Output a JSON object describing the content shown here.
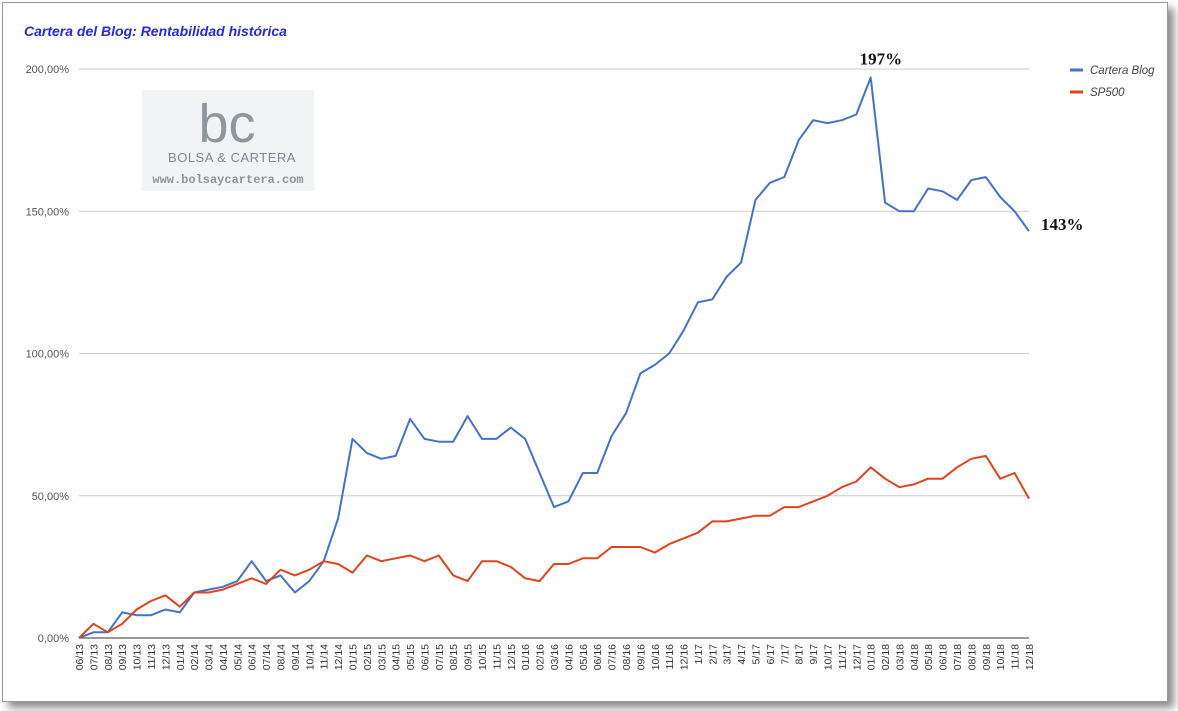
{
  "colors": {
    "title": "#2929d6",
    "blog": "#4472c4",
    "sp500": "#e0431e",
    "grid": "#cccccc",
    "axis": "#333333"
  },
  "watermark": {
    "logo": "bc",
    "name": "BOLSA & CARTERA",
    "url": "www.bolsaycartera.com"
  },
  "annotations": [
    {
      "text": "197%",
      "series": 0,
      "index": 55
    },
    {
      "text": "143%",
      "series": 0,
      "index": 66
    }
  ],
  "chart_data": {
    "type": "line",
    "title": "Cartera del Blog: Rentabilidad histórica",
    "xlabel": "",
    "ylabel": "",
    "ylim": [
      0,
      200
    ],
    "yticks": [
      "0,00%",
      "50,00%",
      "100,00%",
      "150,00%",
      "200,00%"
    ],
    "grid": true,
    "legend_position": "top-right",
    "x": [
      "06/13",
      "07/13",
      "08/13",
      "09/13",
      "10/13",
      "11/13",
      "12/13",
      "01/14",
      "02/14",
      "03/14",
      "04/14",
      "05/14",
      "06/14",
      "07/14",
      "08/14",
      "09/14",
      "10/14",
      "11/14",
      "12/14",
      "01/15",
      "02/15",
      "03/15",
      "04/15",
      "05/15",
      "06/15",
      "07/15",
      "08/15",
      "09/15",
      "10/15",
      "11/15",
      "12/15",
      "01/16",
      "02/16",
      "03/16",
      "04/16",
      "05/16",
      "06/16",
      "07/16",
      "08/16",
      "09/16",
      "10/16",
      "11/16",
      "12/16",
      "1/17",
      "2/17",
      "3/17",
      "4/17",
      "5/17",
      "6/17",
      "7/17",
      "8/17",
      "9/17",
      "10/17",
      "11/17",
      "12/17",
      "01/18",
      "02/18",
      "03/18",
      "04/18",
      "05/18",
      "06/18",
      "07/18",
      "08/18",
      "09/18",
      "10/18",
      "11/18",
      "12/18"
    ],
    "series": [
      {
        "name": "Cartera Blog",
        "values": [
          0,
          2,
          2,
          9,
          8,
          8,
          10,
          9,
          16,
          17,
          18,
          20,
          27,
          20,
          22,
          16,
          20,
          27,
          42,
          70,
          65,
          63,
          64,
          77,
          70,
          69,
          69,
          78,
          70,
          70,
          74,
          70,
          58,
          46,
          48,
          58,
          58,
          71,
          79,
          93,
          96,
          100,
          108,
          118,
          119,
          127,
          132,
          154,
          160,
          162,
          175,
          182,
          181,
          182,
          184,
          197,
          153,
          150,
          150,
          158,
          157,
          154,
          161,
          162,
          155,
          150,
          143
        ]
      },
      {
        "name": "SP500",
        "values": [
          0,
          5,
          2,
          5,
          10,
          13,
          15,
          11,
          16,
          16,
          17,
          19,
          21,
          19,
          24,
          22,
          24,
          27,
          26,
          23,
          29,
          27,
          28,
          29,
          27,
          29,
          22,
          20,
          27,
          27,
          25,
          21,
          20,
          26,
          26,
          28,
          28,
          32,
          32,
          32,
          30,
          33,
          35,
          37,
          41,
          41,
          42,
          43,
          43,
          46,
          46,
          48,
          50,
          53,
          55,
          60,
          56,
          53,
          54,
          56,
          56,
          60,
          63,
          64,
          56,
          58,
          49
        ]
      }
    ]
  }
}
